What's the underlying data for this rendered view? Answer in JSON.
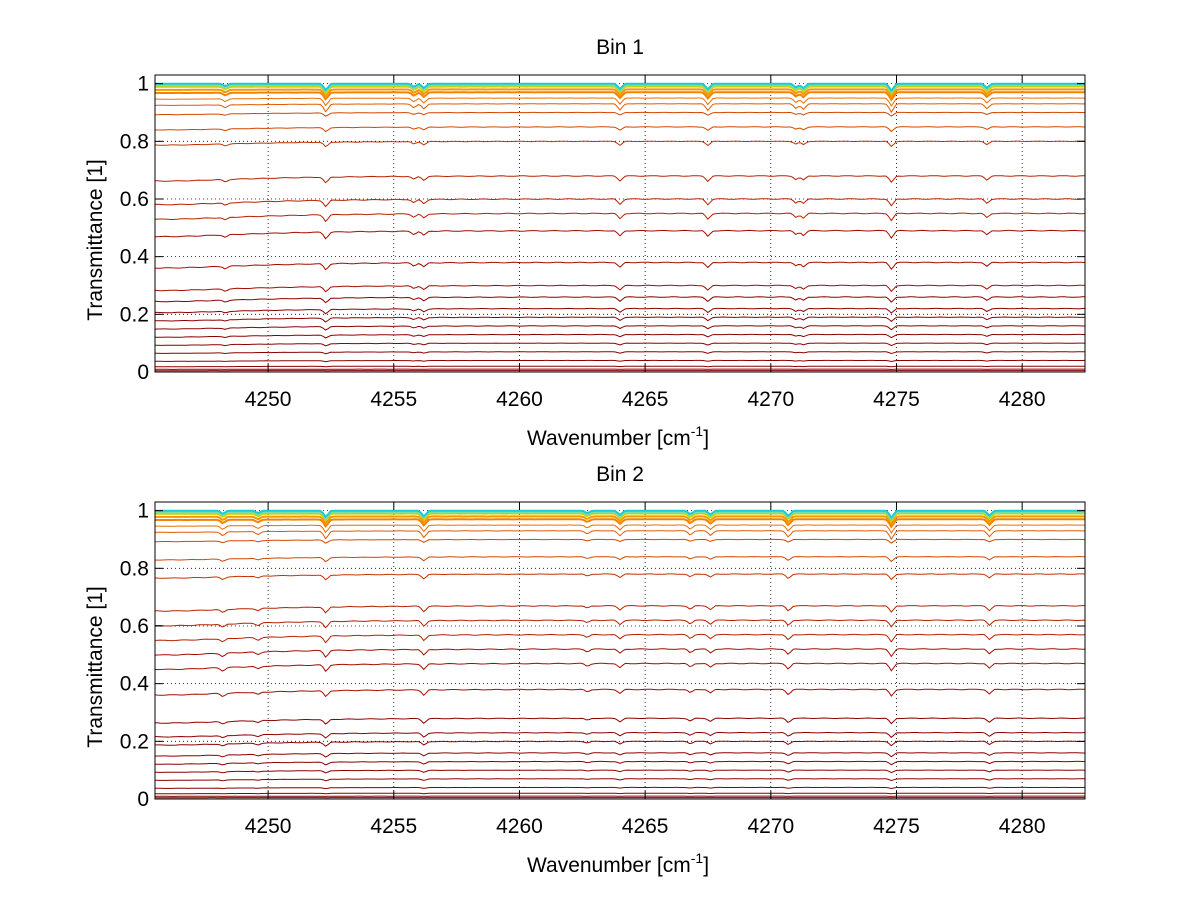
{
  "figure": {
    "background": "#ffffff"
  },
  "chart_data": [
    {
      "type": "line",
      "title": "Bin 1",
      "xlabel": "Wavenumber [cm",
      "xlabel_sup": "-1",
      "xlabel_close": "]",
      "ylabel": "Transmittance [1]",
      "xlim": [
        4245.5,
        4282.5
      ],
      "ylim": [
        0,
        1.03
      ],
      "xticks": [
        4250,
        4255,
        4260,
        4265,
        4270,
        4275,
        4280
      ],
      "xtick_labels": [
        "4250",
        "4255",
        "4260",
        "4265",
        "4270",
        "4275",
        "4280"
      ],
      "yticks": [
        0,
        0.2,
        0.4,
        0.6,
        0.8,
        1
      ],
      "ytick_labels": [
        "0",
        "0.2",
        "0.4",
        "0.6",
        "0.8",
        "1"
      ],
      "grid": "dotted",
      "series_levels": [
        0.0,
        0.005,
        0.01,
        0.02,
        0.04,
        0.07,
        0.1,
        0.13,
        0.16,
        0.19,
        0.22,
        0.26,
        0.3,
        0.38,
        0.49,
        0.55,
        0.6,
        0.68,
        0.8,
        0.85,
        0.9,
        0.93,
        0.95,
        0.97,
        0.98,
        0.99,
        0.995,
        1.0
      ],
      "absorption_lines": [
        {
          "x": 4248.3,
          "depth": 0.35
        },
        {
          "x": 4252.3,
          "depth": 0.9
        },
        {
          "x": 4255.8,
          "depth": 0.45
        },
        {
          "x": 4256.2,
          "depth": 0.6
        },
        {
          "x": 4264.0,
          "depth": 0.75
        },
        {
          "x": 4267.5,
          "depth": 0.8
        },
        {
          "x": 4271.0,
          "depth": 0.55
        },
        {
          "x": 4271.3,
          "depth": 0.65
        },
        {
          "x": 4274.8,
          "depth": 1.0
        },
        {
          "x": 4278.6,
          "depth": 0.6
        }
      ],
      "colors": [
        "#8b0000",
        "#a30c00",
        "#b52000",
        "#c43200",
        "#d24600",
        "#e05a00",
        "#ea6e00",
        "#f28200",
        "#f89600",
        "#c8d000",
        "#7ee0a0",
        "#20c8d8"
      ]
    },
    {
      "type": "line",
      "title": "Bin 2",
      "xlabel": "Wavenumber [cm",
      "xlabel_sup": "-1",
      "xlabel_close": "]",
      "ylabel": "Transmittance [1]",
      "xlim": [
        4245.5,
        4282.5
      ],
      "ylim": [
        0,
        1.03
      ],
      "xticks": [
        4250,
        4255,
        4260,
        4265,
        4270,
        4275,
        4280
      ],
      "xtick_labels": [
        "4250",
        "4255",
        "4260",
        "4265",
        "4270",
        "4275",
        "4280"
      ],
      "yticks": [
        0,
        0.2,
        0.4,
        0.6,
        0.8,
        1
      ],
      "ytick_labels": [
        "0",
        "0.2",
        "0.4",
        "0.6",
        "0.8",
        "1"
      ],
      "grid": "dotted",
      "series_levels": [
        0.0,
        0.005,
        0.01,
        0.02,
        0.04,
        0.07,
        0.1,
        0.13,
        0.16,
        0.2,
        0.23,
        0.28,
        0.38,
        0.47,
        0.52,
        0.57,
        0.62,
        0.67,
        0.78,
        0.84,
        0.9,
        0.93,
        0.95,
        0.97,
        0.98,
        0.99,
        0.995,
        1.0
      ],
      "absorption_lines": [
        {
          "x": 4248.2,
          "depth": 0.45
        },
        {
          "x": 4249.6,
          "depth": 0.35
        },
        {
          "x": 4252.3,
          "depth": 0.9
        },
        {
          "x": 4256.2,
          "depth": 0.8
        },
        {
          "x": 4262.7,
          "depth": 0.35
        },
        {
          "x": 4264.0,
          "depth": 0.6
        },
        {
          "x": 4266.8,
          "depth": 0.5
        },
        {
          "x": 4267.6,
          "depth": 0.55
        },
        {
          "x": 4270.7,
          "depth": 0.75
        },
        {
          "x": 4274.8,
          "depth": 1.0
        },
        {
          "x": 4278.7,
          "depth": 0.7
        }
      ],
      "colors": [
        "#8b0000",
        "#a30c00",
        "#b52000",
        "#c43200",
        "#d24600",
        "#e05a00",
        "#ea6e00",
        "#f28200",
        "#f89600",
        "#c8d000",
        "#7ee0a0",
        "#20c8d8"
      ]
    }
  ]
}
